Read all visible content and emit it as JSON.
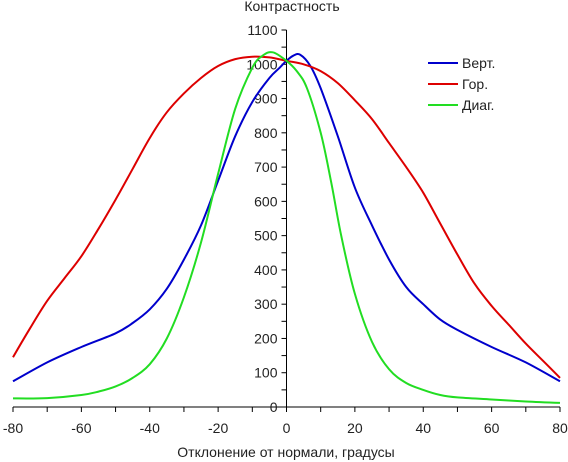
{
  "chart_data": {
    "type": "line",
    "ylabel": "Контрастность",
    "xlabel": "Отклонение от нормали, градусы",
    "xlim": [
      -80,
      80
    ],
    "ylim": [
      0,
      1100
    ],
    "x_ticks": [
      -80,
      -60,
      -40,
      -20,
      0,
      20,
      40,
      60,
      80
    ],
    "y_ticks": [
      0,
      100,
      200,
      300,
      400,
      500,
      600,
      700,
      800,
      900,
      1000,
      1100
    ],
    "legend_position": "top-right",
    "grid": false,
    "series": [
      {
        "name": "Верт.",
        "color": "#0000cc",
        "points": [
          [
            -80,
            75
          ],
          [
            -70,
            130
          ],
          [
            -60,
            175
          ],
          [
            -50,
            215
          ],
          [
            -45,
            245
          ],
          [
            -40,
            285
          ],
          [
            -35,
            345
          ],
          [
            -30,
            430
          ],
          [
            -25,
            530
          ],
          [
            -20,
            660
          ],
          [
            -15,
            790
          ],
          [
            -10,
            890
          ],
          [
            -5,
            960
          ],
          [
            -2,
            990
          ],
          [
            0,
            1010
          ],
          [
            2,
            1025
          ],
          [
            4,
            1028
          ],
          [
            7,
            995
          ],
          [
            10,
            930
          ],
          [
            15,
            790
          ],
          [
            20,
            640
          ],
          [
            25,
            530
          ],
          [
            30,
            430
          ],
          [
            35,
            350
          ],
          [
            40,
            300
          ],
          [
            45,
            255
          ],
          [
            50,
            225
          ],
          [
            60,
            175
          ],
          [
            70,
            130
          ],
          [
            80,
            75
          ]
        ]
      },
      {
        "name": "Гор.",
        "color": "#dd0000",
        "points": [
          [
            -80,
            145
          ],
          [
            -75,
            230
          ],
          [
            -70,
            310
          ],
          [
            -65,
            375
          ],
          [
            -60,
            440
          ],
          [
            -55,
            520
          ],
          [
            -50,
            605
          ],
          [
            -45,
            695
          ],
          [
            -40,
            785
          ],
          [
            -35,
            860
          ],
          [
            -30,
            915
          ],
          [
            -25,
            960
          ],
          [
            -20,
            995
          ],
          [
            -15,
            1015
          ],
          [
            -10,
            1022
          ],
          [
            -5,
            1020
          ],
          [
            0,
            1010
          ],
          [
            5,
            1000
          ],
          [
            10,
            980
          ],
          [
            15,
            945
          ],
          [
            20,
            895
          ],
          [
            25,
            840
          ],
          [
            30,
            770
          ],
          [
            35,
            700
          ],
          [
            40,
            625
          ],
          [
            45,
            535
          ],
          [
            50,
            445
          ],
          [
            55,
            360
          ],
          [
            60,
            295
          ],
          [
            65,
            240
          ],
          [
            70,
            185
          ],
          [
            75,
            135
          ],
          [
            80,
            85
          ]
        ]
      },
      {
        "name": "Диаг.",
        "color": "#22dd22",
        "points": [
          [
            -80,
            25
          ],
          [
            -70,
            26
          ],
          [
            -60,
            35
          ],
          [
            -55,
            45
          ],
          [
            -50,
            60
          ],
          [
            -45,
            85
          ],
          [
            -40,
            125
          ],
          [
            -35,
            200
          ],
          [
            -30,
            320
          ],
          [
            -25,
            480
          ],
          [
            -20,
            680
          ],
          [
            -15,
            870
          ],
          [
            -10,
            990
          ],
          [
            -7,
            1025
          ],
          [
            -4,
            1035
          ],
          [
            0,
            1010
          ],
          [
            3,
            980
          ],
          [
            6,
            930
          ],
          [
            10,
            800
          ],
          [
            13,
            660
          ],
          [
            16,
            500
          ],
          [
            20,
            330
          ],
          [
            25,
            190
          ],
          [
            30,
            110
          ],
          [
            35,
            70
          ],
          [
            40,
            50
          ],
          [
            45,
            35
          ],
          [
            50,
            28
          ],
          [
            60,
            22
          ],
          [
            70,
            16
          ],
          [
            80,
            12
          ]
        ]
      }
    ]
  }
}
